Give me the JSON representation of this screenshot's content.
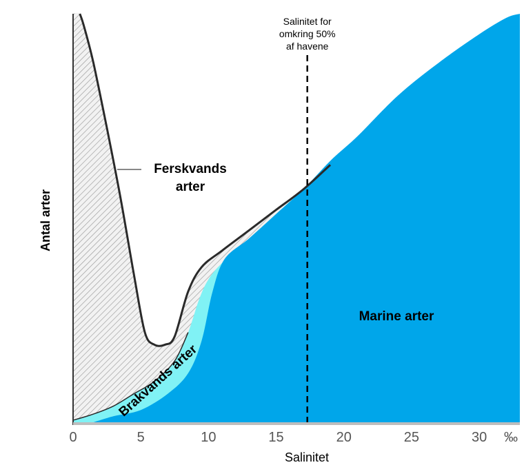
{
  "chart_data": {
    "type": "area",
    "xlabel": "Salinitet",
    "ylabel": "Antal arter",
    "x_unit": "‰",
    "xlim": [
      0,
      33
    ],
    "ylim": [
      0,
      100
    ],
    "x_ticks": [
      "0",
      "5",
      "10",
      "15",
      "20",
      "25",
      "30"
    ],
    "grid": false,
    "series": [
      {
        "name": "Ferskvands arter",
        "label": [
          "Ferskvands",
          "arter"
        ],
        "color": "#d9d9d9",
        "points": [
          [
            0.5,
            100
          ],
          [
            0.8,
            97
          ],
          [
            1.5,
            88
          ],
          [
            2.5,
            72
          ],
          [
            3.5,
            55
          ],
          [
            4.5,
            36
          ],
          [
            5.3,
            22
          ],
          [
            6,
            19
          ],
          [
            6.8,
            19
          ],
          [
            7.5,
            21
          ],
          [
            8.5,
            32
          ],
          [
            9.5,
            38
          ],
          [
            11,
            42
          ],
          [
            13,
            47
          ],
          [
            15,
            52
          ],
          [
            17,
            57
          ],
          [
            19,
            63
          ]
        ]
      },
      {
        "name": "Brakvands arter",
        "label": [
          "Brakvands arter"
        ],
        "color": "#80f2f5",
        "points": [
          [
            0,
            0.5
          ],
          [
            1.5,
            2
          ],
          [
            3,
            4
          ],
          [
            4.5,
            7
          ],
          [
            6,
            10
          ],
          [
            7.5,
            15
          ],
          [
            8.5,
            22
          ],
          [
            9.3,
            30
          ],
          [
            10,
            35
          ],
          [
            11,
            39
          ],
          [
            13,
            45
          ],
          [
            15,
            51
          ],
          [
            17,
            57
          ],
          [
            19,
            63
          ]
        ]
      },
      {
        "name": "Marine arter",
        "label": [
          "Marine arter"
        ],
        "color": "#00a6ea",
        "points": [
          [
            1.5,
            0
          ],
          [
            3,
            1.5
          ],
          [
            5,
            3
          ],
          [
            7,
            7
          ],
          [
            8.5,
            12
          ],
          [
            9.5,
            20
          ],
          [
            10.3,
            32
          ],
          [
            11.2,
            40
          ],
          [
            13,
            45
          ],
          [
            15,
            51
          ],
          [
            17,
            57
          ],
          [
            19,
            64
          ],
          [
            21,
            70
          ],
          [
            24,
            80
          ],
          [
            27,
            88
          ],
          [
            30,
            95
          ],
          [
            32,
            99
          ],
          [
            33,
            100
          ]
        ]
      }
    ],
    "annotations": [
      {
        "text": [
          "Salinitet for",
          "omkring 50%",
          "af havene"
        ],
        "x": 17.3,
        "style": "dashed vertical line"
      }
    ]
  }
}
